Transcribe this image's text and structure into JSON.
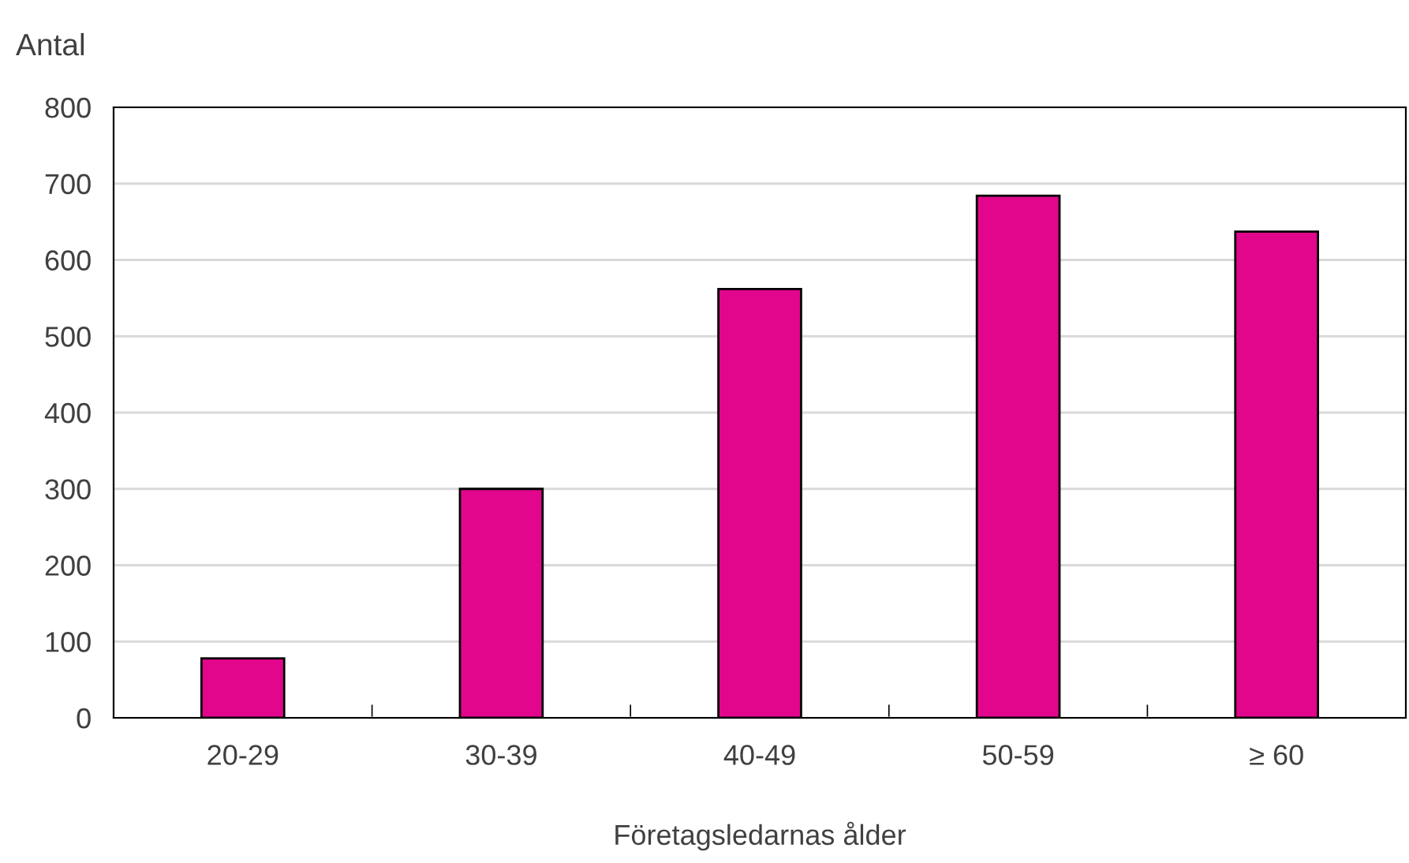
{
  "chart_data": {
    "type": "bar",
    "ylabel": "Antal",
    "xlabel": "Företagsledarnas ålder",
    "categories": [
      "20-29",
      "30-39",
      "40-49",
      "50-59",
      "≥ 60"
    ],
    "values": [
      78,
      300,
      562,
      684,
      637
    ],
    "color": "#e2068c",
    "ylim": [
      0,
      800
    ],
    "yticks": [
      0,
      100,
      200,
      300,
      400,
      500,
      600,
      700,
      800
    ],
    "grid": "y",
    "legend": false
  }
}
